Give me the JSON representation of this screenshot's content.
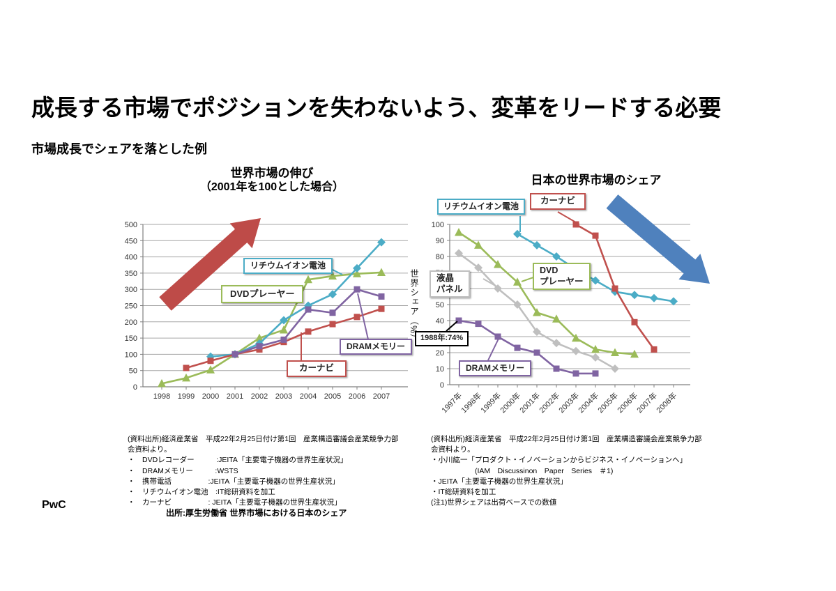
{
  "page": {
    "title": "成長する市場でポジションを失わないよう、変革をリードする必要",
    "subtitle": "市場成長でシェアを落とした例",
    "logo": "PwC"
  },
  "colors": {
    "red": "#C0504D",
    "green": "#9BBB59",
    "cyan": "#4BACC6",
    "purple": "#8064A2",
    "gray": "#BFBFBF",
    "arrow_red": "#BE4B48",
    "arrow_blue": "#4F81BD",
    "grid": "#A6A6A6",
    "axis": "#808080",
    "annotation_border": "#000000"
  },
  "chart_data": [
    {
      "type": "line",
      "title": "世界市場の伸び",
      "subtitle": "（2001年を100とした場合）",
      "categories": [
        "1998",
        "1999",
        "2000",
        "2001",
        "2002",
        "2003",
        "2004",
        "2005",
        "2006",
        "2007"
      ],
      "ylim": [
        0,
        500
      ],
      "ytick": 50,
      "grid": true,
      "trend_arrow": "up",
      "series": [
        {
          "name": "DVDプレーヤー",
          "color_key": "green",
          "marker": "triangle",
          "values": [
            10,
            27,
            52,
            100,
            150,
            175,
            330,
            341,
            348,
            352
          ]
        },
        {
          "name": "リチウムイオン電池",
          "color_key": "cyan",
          "marker": "diamond",
          "values": [
            null,
            null,
            93,
            100,
            133,
            205,
            250,
            285,
            365,
            445
          ]
        },
        {
          "name": "カーナビ",
          "color_key": "red",
          "marker": "square",
          "values": [
            null,
            58,
            80,
            100,
            115,
            138,
            170,
            193,
            215,
            240
          ]
        },
        {
          "name": "DRAMメモリー",
          "color_key": "purple",
          "marker": "square",
          "values": [
            null,
            null,
            null,
            100,
            125,
            145,
            238,
            228,
            300,
            278
          ]
        }
      ]
    },
    {
      "type": "line",
      "title": "日本の世界市場のシェア",
      "ylabel": "世界シェア（%）",
      "categories": [
        "1997年",
        "1998年",
        "1999年",
        "2000年",
        "2001年",
        "2002年",
        "2003年",
        "2004年",
        "2005年",
        "2006年",
        "2007年",
        "2008年"
      ],
      "ylim": [
        0,
        100
      ],
      "ytick": 10,
      "grid": true,
      "trend_arrow": "down",
      "annotation": "1988年:74%",
      "series": [
        {
          "name": "DVDプレーヤー",
          "color_key": "green",
          "marker": "triangle",
          "values": [
            95,
            87,
            75,
            64,
            45,
            41,
            29,
            22,
            20,
            19,
            null,
            null
          ]
        },
        {
          "name": "液晶パネル",
          "color_key": "gray",
          "marker": "diamond",
          "values": [
            82,
            73,
            60,
            50,
            33,
            26,
            21,
            17,
            10,
            null,
            null,
            null
          ]
        },
        {
          "name": "リチウムイオン電池",
          "color_key": "cyan",
          "marker": "diamond",
          "values": [
            null,
            null,
            null,
            94,
            87,
            80,
            72,
            65,
            58,
            56,
            54,
            52
          ]
        },
        {
          "name": "カーナビ",
          "color_key": "red",
          "marker": "square",
          "values": [
            null,
            null,
            null,
            null,
            null,
            null,
            100,
            93,
            60,
            39,
            22,
            null
          ]
        },
        {
          "name": "DRAMメモリー",
          "color_key": "purple",
          "marker": "square",
          "values": [
            40,
            38,
            30,
            23,
            20,
            10,
            7,
            7,
            null,
            null,
            null,
            null
          ]
        }
      ]
    }
  ],
  "callouts": {
    "left_lithium": "リチウムイオン電池",
    "left_dvd": "DVDプレーヤー",
    "left_dram": "DRAMメモリー",
    "left_carnav": "カーナビ",
    "right_lithium": "リチウムイオン電池",
    "right_carnav": "カーナビ",
    "right_dvd_line1": "DVD",
    "right_dvd_line2": "プレーヤー",
    "right_lcd_line1": "液晶",
    "right_lcd_line2": "パネル",
    "right_dram": "DRAMメモリー",
    "right_annotation": "1988年:74%"
  },
  "footnotes": {
    "left_lines": [
      "(資料出所)経済産業省　平成22年2月25日付け第1回　産業構造審議会産業競争力部",
      "会資料より。",
      "・　DVDレコーダー　　　:JEITA「主要電子機器の世界生産状況」",
      "・　DRAMメモリー　　　:WSTS",
      "・　携帯電話　　　　　:JEITA「主要電子機器の世界生産状況」",
      "・　リチウムイオン電池　:IT総研資料を加工",
      "・　カーナビ　　　　　: JEITA「主要電子機器の世界生産状況」"
    ],
    "left_source": "出所:厚生労働省 世界市場における日本のシェア",
    "right_lines": [
      "(資料出所)経済産業省　平成22年2月25日付け第1回　産業構造審議会産業競争力部",
      "会資料より。",
      "・小川紘一「プロダクト・イノベーションからビジネス・イノベーションへ」",
      "　　　　　　(IAM　Discussinon　Paper　Series　＃1)",
      "・JEITA「主要電子機器の世界生産状況」",
      "・IT総研資料を加工",
      "(注1)世界シェアは出荷ベースでの数値"
    ]
  }
}
